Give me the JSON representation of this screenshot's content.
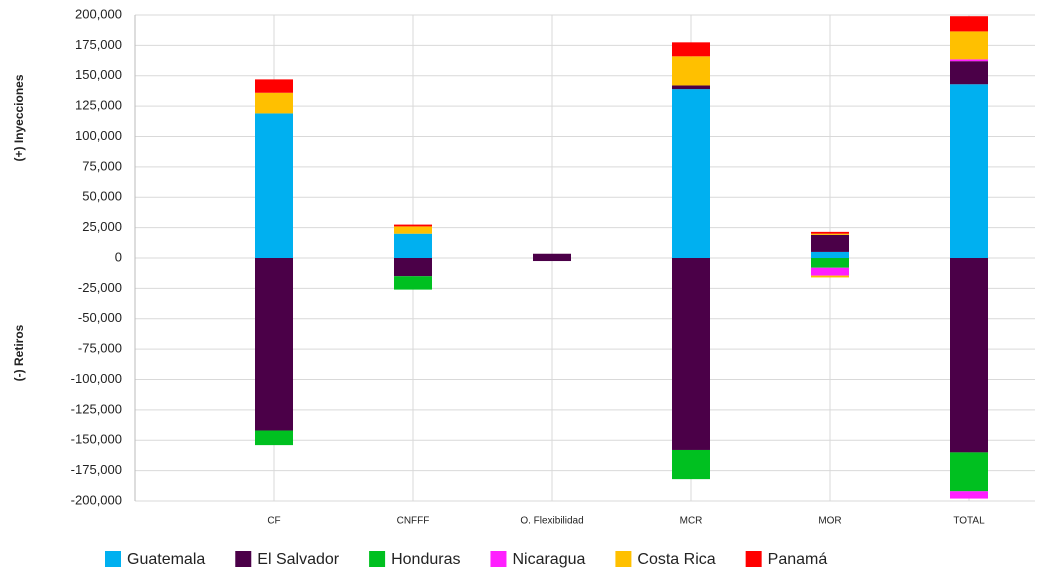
{
  "chart_data": {
    "type": "diverging-stacked-bar",
    "y_label_positive": "(+) Inyecciones",
    "y_label_negative": "(-) Retiros",
    "categories": [
      "CF",
      "CNFFF",
      "O. Flexibilidad",
      "MCR",
      "MOR",
      "TOTAL"
    ],
    "series": [
      {
        "name": "Guatemala",
        "color": "#00b0f0",
        "inyecciones": [
          119000,
          20000,
          0,
          139000,
          5000,
          143000
        ],
        "retiros": [
          0,
          0,
          0,
          0,
          0,
          0
        ]
      },
      {
        "name": "El Salvador",
        "color": "#4b0048",
        "inyecciones": [
          0,
          0,
          3500,
          3000,
          14000,
          19000
        ],
        "retiros": [
          -142000,
          -15000,
          -2500,
          -158000,
          0,
          -160000
        ]
      },
      {
        "name": "Honduras",
        "color": "#00c020",
        "inyecciones": [
          0,
          0,
          0,
          0,
          0,
          0
        ],
        "retiros": [
          -12000,
          -11000,
          0,
          -24000,
          -8000,
          -32000
        ]
      },
      {
        "name": "Nicaragua",
        "color": "#ff1fff",
        "inyecciones": [
          0,
          0,
          0,
          0,
          0,
          1500
        ],
        "retiros": [
          0,
          0,
          0,
          0,
          -6500,
          -6000
        ]
      },
      {
        "name": "Costa Rica",
        "color": "#ffc000",
        "inyecciones": [
          17000,
          6000,
          0,
          24000,
          1000,
          23000
        ],
        "retiros": [
          0,
          0,
          0,
          0,
          -1500,
          0
        ]
      },
      {
        "name": "Panamá",
        "color": "#ff0000",
        "inyecciones": [
          11000,
          1500,
          0,
          11500,
          1500,
          12500
        ],
        "retiros": [
          0,
          0,
          0,
          0,
          0,
          0
        ]
      }
    ],
    "ylim": [
      -200000,
      200000
    ],
    "yticks": [
      {
        "value": 200000,
        "label": "200,000"
      },
      {
        "value": 175000,
        "label": "175,000"
      },
      {
        "value": 150000,
        "label": "150,000"
      },
      {
        "value": 125000,
        "label": "125,000"
      },
      {
        "value": 100000,
        "label": "100,000"
      },
      {
        "value": 75000,
        "label": "75,000"
      },
      {
        "value": 50000,
        "label": "50,000"
      },
      {
        "value": 25000,
        "label": "25,000"
      },
      0,
      {
        "value": -25000,
        "label": "-25,000"
      },
      {
        "value": -50000,
        "label": "-50,000"
      },
      {
        "value": -75000,
        "label": "-75,000"
      },
      {
        "value": -100000,
        "label": "-100,000"
      },
      {
        "value": -125000,
        "label": "-125,000"
      },
      {
        "value": -150000,
        "label": "-150,000"
      },
      {
        "value": -175000,
        "label": "-175,000"
      },
      {
        "value": -200000,
        "label": "-200,000"
      }
    ],
    "grid": true
  }
}
